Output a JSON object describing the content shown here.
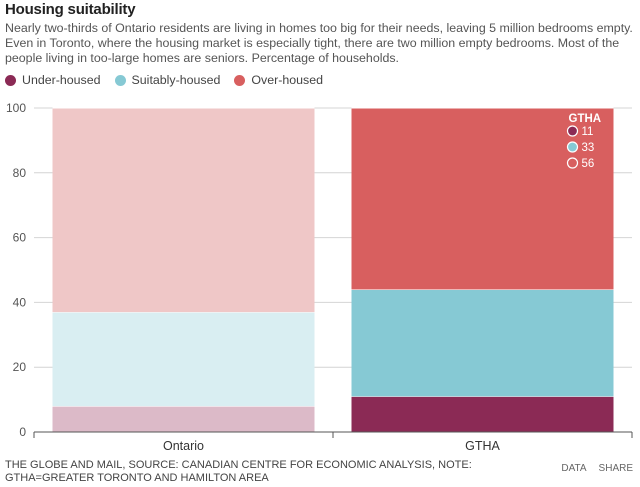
{
  "header": {
    "title": "Housing suitability",
    "subtitle": "Nearly two-thirds of Ontario residents are living in homes too big for their needs, leaving 5 million bedrooms empty. Even in Toronto, where the housing market is especially tight, there are two million empty bedrooms. Most of the people living in too-large homes are seniors. Percentage of households."
  },
  "colors": {
    "under_housed": "#8b2a55",
    "suitably_housed": "#86c9d4",
    "over_housed": "#d85f5f",
    "under_housed_faded": "#dcbac8",
    "suitably_housed_faded": "#d9eef2",
    "over_housed_faded": "#efc7c7"
  },
  "chart_data": {
    "type": "bar",
    "stacked": true,
    "title": "Housing suitability",
    "ylabel": "Percentage of households",
    "ylim": [
      0,
      100
    ],
    "yticks": [
      0,
      20,
      40,
      60,
      80,
      100
    ],
    "categories": [
      "Ontario",
      "GTHA"
    ],
    "highlighted_category": "GTHA",
    "series": [
      {
        "name": "Under-housed",
        "values": [
          8,
          11
        ]
      },
      {
        "name": "Suitably-housed",
        "values": [
          29,
          33
        ]
      },
      {
        "name": "Over-housed",
        "values": [
          63,
          56
        ]
      }
    ],
    "tooltip": {
      "title": "GTHA",
      "entries": [
        {
          "series": "Under-housed",
          "label": "11"
        },
        {
          "series": "Suitably-housed",
          "label": "33"
        },
        {
          "series": "Over-housed",
          "label": "56"
        }
      ]
    },
    "legend_position": "top-left"
  },
  "footer": {
    "source": "THE GLOBE AND MAIL, SOURCE: CANADIAN CENTRE FOR ECONOMIC ANALYSIS, NOTE: GTHA=GREATER TORONTO AND HAMILTON AREA",
    "data_link": "DATA",
    "share_link": "SHARE"
  }
}
